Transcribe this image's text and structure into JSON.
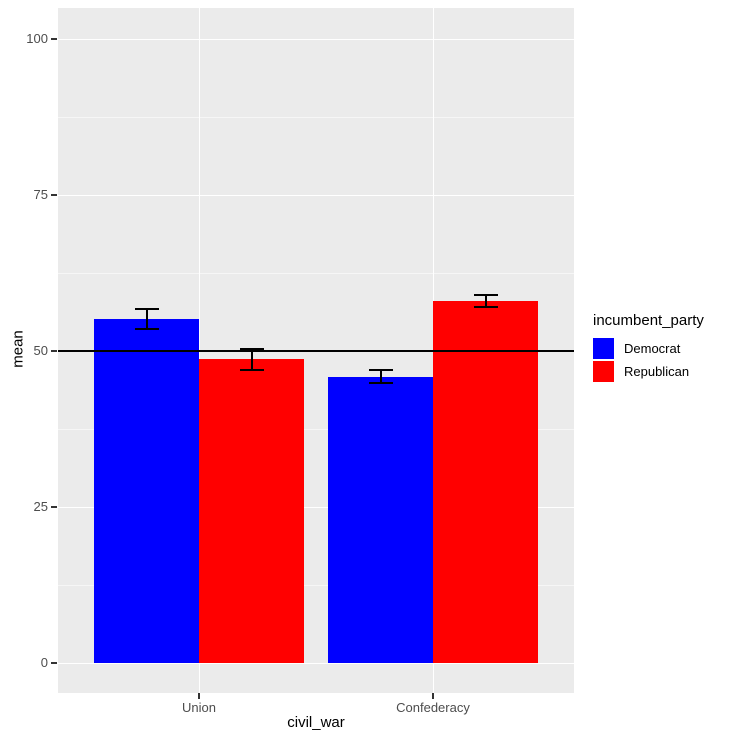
{
  "chart_data": {
    "type": "bar",
    "title": "",
    "xlabel": "civil_war",
    "ylabel": "mean",
    "categories": [
      "Union",
      "Confederacy"
    ],
    "series": [
      {
        "name": "Democrat",
        "color": "#0000FF",
        "values": [
          55.2,
          45.9
        ],
        "error_low": [
          53.6,
          44.8
        ],
        "error_high": [
          56.8,
          47.0
        ]
      },
      {
        "name": "Republican",
        "color": "#FF0000",
        "values": [
          48.7,
          58.0
        ],
        "error_low": [
          47.0,
          57.0
        ],
        "error_high": [
          50.4,
          59.0
        ]
      }
    ],
    "y_ticks": [
      0,
      25,
      50,
      75,
      100
    ],
    "ylim": [
      0,
      100
    ],
    "reference_line": 50,
    "legend_title": "incumbent_party",
    "legend_position": "right",
    "grid": true,
    "panel_background": "#EBEBEB",
    "gridline_color": "#FFFFFF",
    "tick_color": "#333333",
    "tick_label_color": "#4D4D4D",
    "errorbar_color": "#000000",
    "reference_line_color": "#000000"
  }
}
